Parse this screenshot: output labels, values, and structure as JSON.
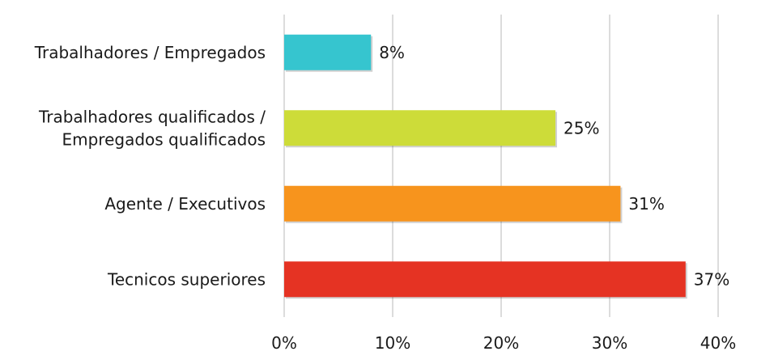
{
  "chart_data": {
    "type": "bar",
    "orientation": "horizontal",
    "categories": [
      [
        "Trabalhadores / Empregados"
      ],
      [
        "Trabalhadores qualificados /",
        "Empregados qualificados"
      ],
      [
        "Agente / Executivos"
      ],
      [
        "Tecnicos superiores"
      ]
    ],
    "values": [
      8,
      25,
      31,
      37
    ],
    "data_labels": [
      "8%",
      "25%",
      "31%",
      "37%"
    ],
    "colors": [
      "#36c5cf",
      "#cddc39",
      "#f7941d",
      "#e53323"
    ],
    "xlim": [
      0,
      40
    ],
    "xticks": [
      0,
      10,
      20,
      30,
      40
    ],
    "xtick_labels": [
      "0%",
      "10%",
      "20%",
      "30%",
      "40%"
    ],
    "grid": "vertical",
    "legend": "none",
    "title": "",
    "xlabel": "",
    "ylabel": ""
  }
}
